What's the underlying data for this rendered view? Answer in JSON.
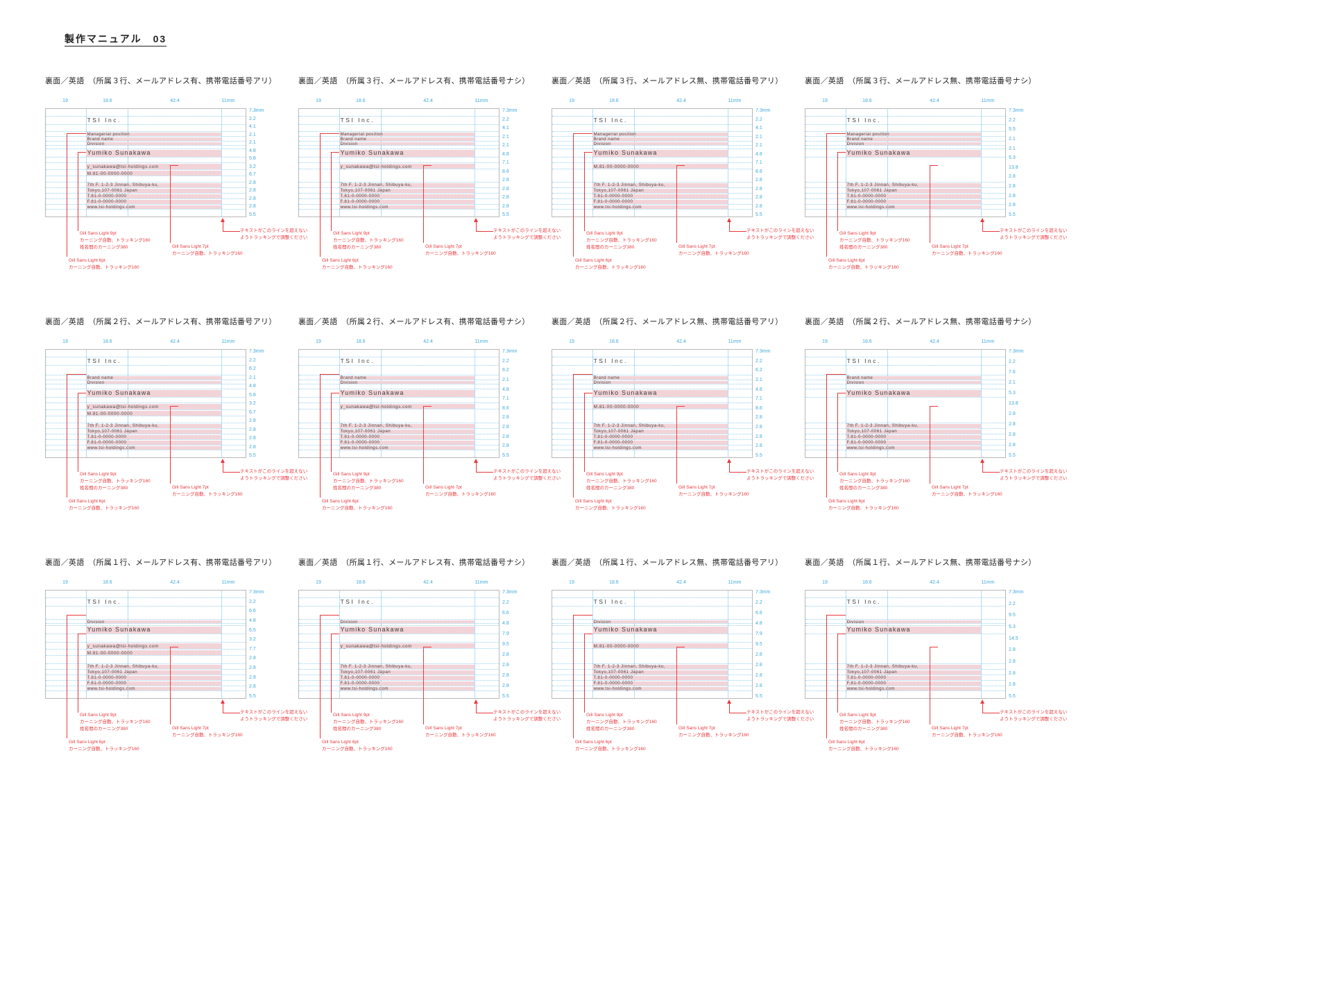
{
  "page": {
    "title": "製作マニュアル　03"
  },
  "shared": {
    "dimensions_top": [
      "19",
      "18.6",
      "42.4",
      "11mm"
    ],
    "card": {
      "company": "TSI Inc.",
      "name": "Yumiko Sunakawa",
      "address": [
        "7th F. 1-2-3 Jinnan, Shibuya-ku,",
        "Tokyo,107-0061 Japan",
        "T.81-0-0000-0000",
        "F.81-0-0000-0000",
        "www.tsi-holdings.com"
      ]
    },
    "annotations": {
      "name_spec": [
        "Gill Sans Light 9pt",
        "カーニング自動、トラッキング160",
        "姓名間のカーニング380"
      ],
      "contact_spec": [
        "Gill Sans Light 7pt",
        "カーニング自動、トラッキング160"
      ],
      "position_spec": [
        "Gill Sans Light 6pt",
        "カーニング自動、トラッキング160"
      ],
      "tracking_note": "テキストがこのラインを超えないようトラッキングで調整ください"
    },
    "colors": {
      "guide_cyan": "#3fa9dc",
      "highlight_pink": "#f2d4d8",
      "annotation_red": "#e8383d"
    }
  },
  "cards": [
    {
      "title": "裏面／英語　（所属３行、メールアドレス有、携帯電話番号アリ）",
      "variant": "p3",
      "positions": [
        "Managerial position",
        "Brand name",
        "Division"
      ],
      "contact": [
        "y_sunakawa@tsi-holdings.com",
        "M.81-00-0000-0000"
      ],
      "measurements": [
        "7.3mm",
        "2.2",
        "4.1",
        "2.1",
        "2.1",
        "4.8",
        "5.8",
        "3.2",
        "6.7",
        "2.8",
        "2.8",
        "2.8",
        "2.8",
        "5.5"
      ]
    },
    {
      "title": "裏面／英語　（所属３行、メールアドレス有、携帯電話番号ナシ）",
      "variant": "p3",
      "positions": [
        "Managerial position",
        "Brand name",
        "Division"
      ],
      "contact": [
        "y_sunakawa@tsi-holdings.com"
      ],
      "measurements": [
        "7.3mm",
        "2.2",
        "4.1",
        "2.1",
        "2.1",
        "4.8",
        "7.1",
        "8.6",
        "2.8",
        "2.8",
        "2.8",
        "2.8",
        "5.5"
      ]
    },
    {
      "title": "裏面／英語　（所属３行、メールアドレス無、携帯電話番号アリ）",
      "variant": "p3",
      "positions": [
        "Managerial position",
        "Brand name",
        "Division"
      ],
      "contact": [
        "M.81-00-0000-0000"
      ],
      "measurements": [
        "7.3mm",
        "2.2",
        "4.1",
        "2.1",
        "2.1",
        "4.8",
        "7.1",
        "8.6",
        "2.8",
        "2.8",
        "2.8",
        "2.8",
        "5.5"
      ]
    },
    {
      "title": "裏面／英語　（所属３行、メールアドレス無、携帯電話番号ナシ）",
      "variant": "p3",
      "positions": [
        "Managerial position",
        "Brand name",
        "Division"
      ],
      "contact": [],
      "measurements": [
        "7.3mm",
        "2.2",
        "5.5",
        "2.1",
        "2.1",
        "5.3",
        "13.8",
        "2.8",
        "2.8",
        "2.8",
        "2.8",
        "5.5"
      ]
    },
    {
      "title": "裏面／英語　（所属２行、メールアドレス有、携帯電話番号アリ）",
      "variant": "p2",
      "positions": [
        "Brand name",
        "Division"
      ],
      "contact": [
        "y_sunakawa@tsi-holdings.com",
        "M.81-00-0000-0000"
      ],
      "measurements": [
        "7.3mm",
        "2.2",
        "6.2",
        "2.1",
        "4.8",
        "5.8",
        "3.2",
        "6.7",
        "2.8",
        "2.8",
        "2.8",
        "2.8",
        "5.5"
      ]
    },
    {
      "title": "裏面／英語　（所属２行、メールアドレス有、携帯電話番号ナシ）",
      "variant": "p2",
      "positions": [
        "Brand name",
        "Division"
      ],
      "contact": [
        "y_sunakawa@tsi-holdings.com"
      ],
      "measurements": [
        "7.3mm",
        "2.2",
        "6.2",
        "2.1",
        "4.8",
        "7.1",
        "8.6",
        "2.8",
        "2.8",
        "2.8",
        "2.8",
        "5.5"
      ]
    },
    {
      "title": "裏面／英語　（所属２行、メールアドレス無、携帯電話番号アリ）",
      "variant": "p2",
      "positions": [
        "Brand name",
        "Division"
      ],
      "contact": [
        "M.81-00-0000-0000"
      ],
      "measurements": [
        "7.3mm",
        "2.2",
        "6.2",
        "2.1",
        "4.8",
        "7.1",
        "8.6",
        "2.8",
        "2.8",
        "2.8",
        "2.8",
        "5.5"
      ]
    },
    {
      "title": "裏面／英語　（所属２行、メールアドレス無、携帯電話番号ナシ）",
      "variant": "p2",
      "positions": [
        "Brand name",
        "Division"
      ],
      "contact": [],
      "measurements": [
        "7.3mm",
        "2.2",
        "7.6",
        "2.1",
        "5.3",
        "13.8",
        "2.8",
        "2.8",
        "2.8",
        "2.8",
        "5.5"
      ]
    },
    {
      "title": "裏面／英語　（所属１行、メールアドレス有、携帯電話番号アリ）",
      "variant": "p1",
      "positions": [
        "Division"
      ],
      "contact": [
        "y_sunakawa@tsi-holdings.com",
        "M.81-00-0000-0000"
      ],
      "measurements": [
        "7.3mm",
        "2.2",
        "6.6",
        "4.8",
        "6.5",
        "3.2",
        "7.7",
        "2.8",
        "2.8",
        "2.8",
        "2.8",
        "5.5"
      ]
    },
    {
      "title": "裏面／英語　（所属１行、メールアドレス有、携帯電話番号ナシ）",
      "variant": "p1",
      "positions": [
        "Division"
      ],
      "contact": [
        "y_sunakawa@tsi-holdings.com"
      ],
      "measurements": [
        "7.3mm",
        "2.2",
        "6.6",
        "4.8",
        "7.9",
        "9.5",
        "2.8",
        "2.8",
        "2.8",
        "2.8",
        "5.5"
      ]
    },
    {
      "title": "裏面／英語　（所属１行、メールアドレス無、携帯電話番号アリ）",
      "variant": "p1",
      "positions": [
        "Division"
      ],
      "contact": [
        "M.81-00-0000-0000"
      ],
      "measurements": [
        "7.3mm",
        "2.2",
        "6.6",
        "4.8",
        "7.9",
        "9.5",
        "2.8",
        "2.8",
        "2.8",
        "2.8",
        "5.5"
      ]
    },
    {
      "title": "裏面／英語　（所属１行、メールアドレス無、携帯電話番号ナシ）",
      "variant": "p1",
      "positions": [
        "Division"
      ],
      "contact": [],
      "measurements": [
        "7.3mm",
        "2.2",
        "9.5",
        "5.3",
        "14.5",
        "2.8",
        "2.8",
        "2.8",
        "2.8",
        "5.5"
      ]
    }
  ]
}
